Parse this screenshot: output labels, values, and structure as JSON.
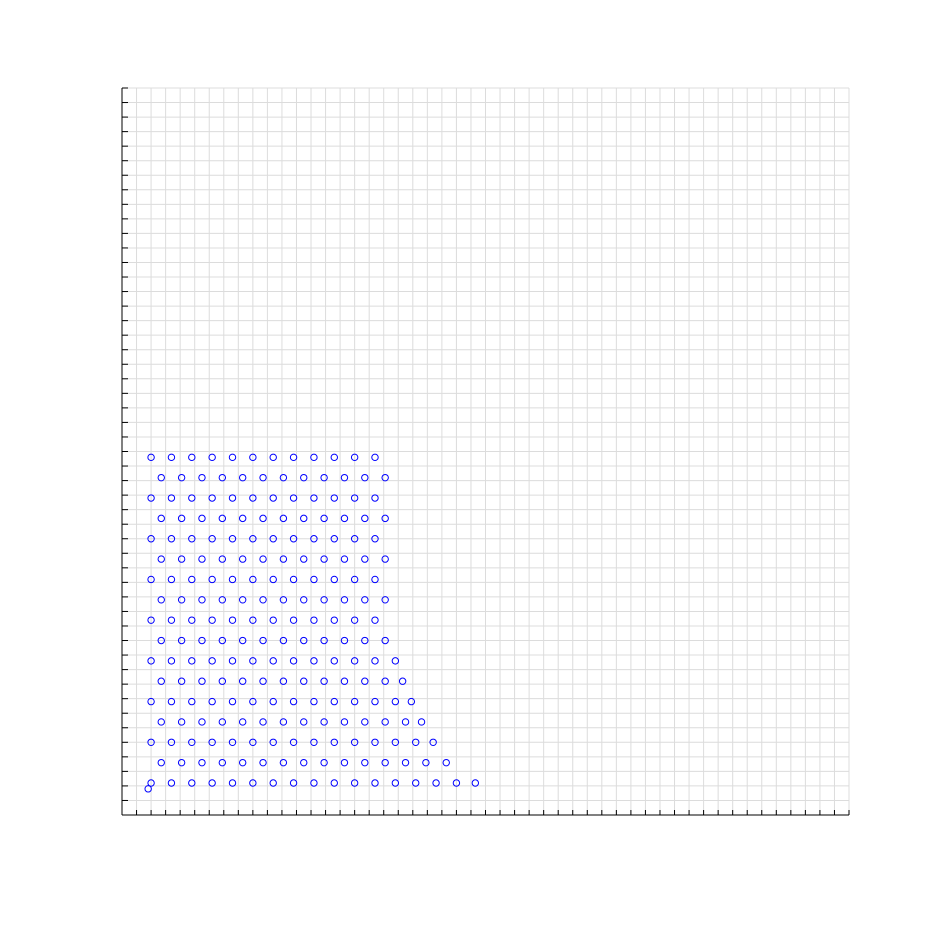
{
  "chart_data": {
    "type": "scatter",
    "color": "#0000ff",
    "grid": true,
    "xlim": [
      0,
      50
    ],
    "ylim": [
      0,
      50
    ],
    "xticks": [
      0,
      1,
      2,
      3,
      4,
      5,
      6,
      7,
      8,
      9,
      10,
      11,
      12,
      13,
      14,
      15,
      16,
      17,
      18,
      19,
      20,
      21,
      22,
      23,
      24,
      25,
      26,
      27,
      28,
      29,
      30,
      31,
      32,
      33,
      34,
      35,
      36,
      37,
      38,
      39,
      40,
      41,
      42,
      43,
      44,
      45,
      46,
      47,
      48,
      49,
      50
    ],
    "yticks": [
      0,
      1,
      2,
      3,
      4,
      5,
      6,
      7,
      8,
      9,
      10,
      11,
      12,
      13,
      14,
      15,
      16,
      17,
      18,
      19,
      20,
      21,
      22,
      23,
      24,
      25,
      26,
      27,
      28,
      29,
      30,
      31,
      32,
      33,
      34,
      35,
      36,
      37,
      38,
      39,
      40,
      41,
      42,
      43,
      44,
      45,
      46,
      47,
      48,
      49,
      50
    ],
    "x": [
      2.0,
      3.4,
      4.8,
      6.2,
      7.6,
      9.0,
      10.4,
      11.8,
      13.2,
      14.6,
      16.0,
      17.4,
      18.8,
      20.2,
      21.6,
      23.0,
      24.3,
      2.7,
      4.1,
      5.5,
      6.9,
      8.3,
      9.7,
      11.1,
      12.5,
      13.9,
      15.3,
      16.7,
      18.1,
      19.5,
      20.9,
      22.3,
      2.0,
      3.4,
      4.8,
      6.2,
      7.6,
      9.0,
      10.4,
      11.8,
      13.2,
      14.6,
      16.0,
      17.4,
      18.8,
      20.2,
      21.4,
      2.7,
      4.1,
      5.5,
      6.9,
      8.3,
      9.7,
      11.1,
      12.5,
      13.9,
      15.3,
      16.7,
      18.1,
      19.5,
      20.6,
      2.0,
      3.4,
      4.8,
      6.2,
      7.6,
      9.0,
      10.4,
      11.8,
      13.2,
      14.6,
      16.0,
      17.4,
      18.8,
      19.9,
      2.7,
      4.1,
      5.5,
      6.9,
      8.3,
      9.7,
      11.1,
      12.5,
      13.9,
      15.3,
      16.7,
      18.1,
      19.3,
      2.0,
      3.4,
      4.8,
      6.2,
      7.6,
      9.0,
      10.4,
      11.8,
      13.2,
      14.6,
      16.0,
      17.4,
      18.8,
      2.7,
      4.1,
      5.5,
      6.9,
      8.3,
      9.7,
      11.1,
      12.5,
      13.9,
      15.3,
      16.7,
      18.1,
      2.0,
      3.4,
      4.8,
      6.2,
      7.6,
      9.0,
      10.4,
      11.8,
      13.2,
      14.6,
      16.0,
      17.4,
      2.7,
      4.1,
      5.5,
      6.9,
      8.3,
      9.7,
      11.1,
      12.5,
      13.9,
      15.3,
      16.7,
      18.1,
      2.0,
      3.4,
      4.8,
      6.2,
      7.6,
      9.0,
      10.4,
      11.8,
      13.2,
      14.6,
      16.0,
      17.4,
      2.7,
      4.1,
      5.5,
      6.9,
      8.3,
      9.7,
      11.1,
      12.5,
      13.9,
      15.3,
      16.7,
      18.1,
      2.0,
      3.4,
      4.8,
      6.2,
      7.6,
      9.0,
      10.4,
      11.8,
      13.2,
      14.6,
      16.0,
      17.4,
      2.7,
      4.1,
      5.5,
      6.9,
      8.3,
      9.7,
      11.1,
      12.5,
      13.9,
      15.3,
      16.7,
      18.1,
      2.0,
      3.4,
      4.8,
      6.2,
      7.6,
      9.0,
      10.4,
      11.8,
      13.2,
      14.6,
      16.0,
      17.4,
      2.7,
      4.1,
      5.5,
      6.9,
      8.3,
      9.7,
      11.1,
      12.5,
      13.9,
      15.3,
      16.7,
      18.1,
      2.0,
      3.4,
      4.8,
      6.2,
      7.6,
      9.0,
      10.4,
      11.8,
      13.2,
      14.6,
      16.0,
      17.4,
      1.8
    ],
    "y": [
      2.2,
      2.2,
      2.2,
      2.2,
      2.2,
      2.2,
      2.2,
      2.2,
      2.2,
      2.2,
      2.2,
      2.2,
      2.2,
      2.2,
      2.2,
      2.2,
      2.2,
      3.6,
      3.6,
      3.6,
      3.6,
      3.6,
      3.6,
      3.6,
      3.6,
      3.6,
      3.6,
      3.6,
      3.6,
      3.6,
      3.6,
      3.6,
      5.0,
      5.0,
      5.0,
      5.0,
      5.0,
      5.0,
      5.0,
      5.0,
      5.0,
      5.0,
      5.0,
      5.0,
      5.0,
      5.0,
      5.0,
      6.4,
      6.4,
      6.4,
      6.4,
      6.4,
      6.4,
      6.4,
      6.4,
      6.4,
      6.4,
      6.4,
      6.4,
      6.4,
      6.4,
      7.8,
      7.8,
      7.8,
      7.8,
      7.8,
      7.8,
      7.8,
      7.8,
      7.8,
      7.8,
      7.8,
      7.8,
      7.8,
      7.8,
      9.2,
      9.2,
      9.2,
      9.2,
      9.2,
      9.2,
      9.2,
      9.2,
      9.2,
      9.2,
      9.2,
      9.2,
      9.2,
      10.6,
      10.6,
      10.6,
      10.6,
      10.6,
      10.6,
      10.6,
      10.6,
      10.6,
      10.6,
      10.6,
      10.6,
      10.6,
      12.0,
      12.0,
      12.0,
      12.0,
      12.0,
      12.0,
      12.0,
      12.0,
      12.0,
      12.0,
      12.0,
      12.0,
      13.4,
      13.4,
      13.4,
      13.4,
      13.4,
      13.4,
      13.4,
      13.4,
      13.4,
      13.4,
      13.4,
      13.4,
      14.8,
      14.8,
      14.8,
      14.8,
      14.8,
      14.8,
      14.8,
      14.8,
      14.8,
      14.8,
      14.8,
      14.8,
      16.2,
      16.2,
      16.2,
      16.2,
      16.2,
      16.2,
      16.2,
      16.2,
      16.2,
      16.2,
      16.2,
      16.2,
      17.6,
      17.6,
      17.6,
      17.6,
      17.6,
      17.6,
      17.6,
      17.6,
      17.6,
      17.6,
      17.6,
      17.6,
      19.0,
      19.0,
      19.0,
      19.0,
      19.0,
      19.0,
      19.0,
      19.0,
      19.0,
      19.0,
      19.0,
      19.0,
      20.4,
      20.4,
      20.4,
      20.4,
      20.4,
      20.4,
      20.4,
      20.4,
      20.4,
      20.4,
      20.4,
      20.4,
      21.8,
      21.8,
      21.8,
      21.8,
      21.8,
      21.8,
      21.8,
      21.8,
      21.8,
      21.8,
      21.8,
      21.8,
      23.2,
      23.2,
      23.2,
      23.2,
      23.2,
      23.2,
      23.2,
      23.2,
      23.2,
      23.2,
      23.2,
      23.2,
      24.6,
      24.6,
      24.6,
      24.6,
      24.6,
      24.6,
      24.6,
      24.6,
      24.6,
      24.6,
      24.6,
      24.6,
      1.8
    ]
  }
}
